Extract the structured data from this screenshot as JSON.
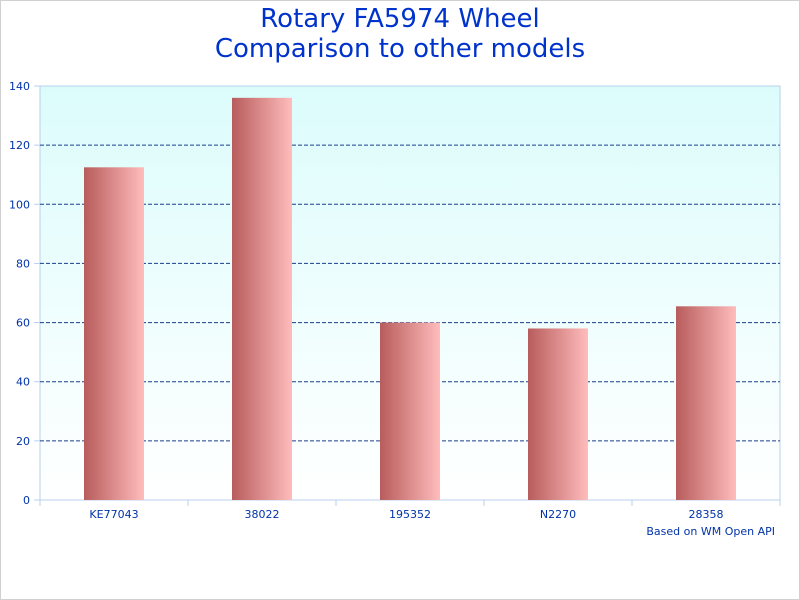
{
  "chart_data": {
    "type": "bar",
    "title": [
      "Rotary FA5974 Wheel",
      "Comparison to other models"
    ],
    "categories": [
      "KE77043",
      "38022",
      "195352",
      "N2270",
      "28358"
    ],
    "values": [
      112.5,
      136,
      60,
      58,
      65.5
    ],
    "ylim": [
      0,
      140
    ],
    "yticks": [
      0,
      20,
      40,
      60,
      80,
      100,
      120,
      140
    ],
    "xlabel": "",
    "ylabel": "",
    "grid": true,
    "legend": "none",
    "credit": "Based on WM Open API",
    "colors": {
      "plot_bg_top": "#dcfcfc",
      "plot_bg_bottom": "#ffffff",
      "bar_dark": "#b85c5c",
      "bar_light": "#ffbcbc",
      "grid": "#1a3f8a",
      "axis": "#b8d0ee",
      "text": "#0033aa",
      "title": "#0033cc"
    }
  }
}
